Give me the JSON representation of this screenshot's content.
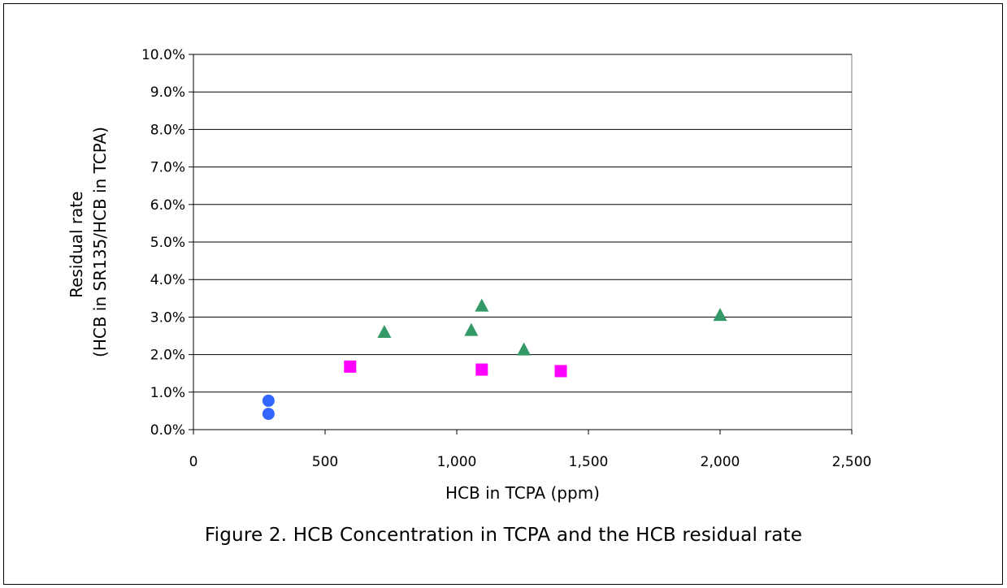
{
  "chart_data": {
    "type": "scatter",
    "title": "",
    "xlabel": "HCB in TCPA (ppm)",
    "ylabel_lines": [
      "Residual rate",
      "(HCB in SR135/HCB in TCPA)"
    ],
    "xlim": [
      0,
      2500
    ],
    "ylim": [
      0,
      0.1
    ],
    "x_ticks": [
      0,
      500,
      1000,
      1500,
      2000,
      2500
    ],
    "x_tick_labels": [
      "0",
      "500",
      "1,000",
      "1,500",
      "2,000",
      "2,500"
    ],
    "y_ticks": [
      0,
      0.01,
      0.02,
      0.03,
      0.04,
      0.05,
      0.06,
      0.07,
      0.08,
      0.09,
      0.1
    ],
    "y_tick_labels": [
      "0.0%",
      "1.0%",
      "2.0%",
      "3.0%",
      "4.0%",
      "5.0%",
      "6.0%",
      "7.0%",
      "8.0%",
      "9.0%",
      "10.0%"
    ],
    "grid": "horizontal",
    "series": [
      {
        "marker": "circle",
        "color": "#3366ff",
        "points": [
          [
            285,
            0.0077
          ],
          [
            285,
            0.0042
          ]
        ]
      },
      {
        "marker": "square",
        "color": "#ff00ff",
        "points": [
          [
            595,
            0.0168
          ],
          [
            1095,
            0.016
          ],
          [
            1395,
            0.0156
          ]
        ]
      },
      {
        "marker": "triangle",
        "color": "#339966",
        "points": [
          [
            725,
            0.0262
          ],
          [
            1055,
            0.0267
          ],
          [
            1095,
            0.0332
          ],
          [
            1255,
            0.0215
          ],
          [
            2000,
            0.0307
          ]
        ]
      }
    ]
  },
  "caption": "Figure 2. HCB Concentration in TCPA and the HCB residual rate"
}
